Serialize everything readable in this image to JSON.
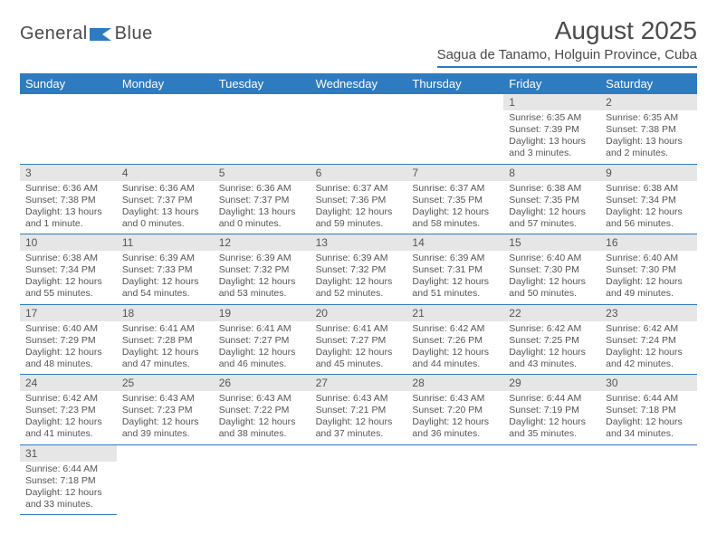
{
  "brand": {
    "name1": "General",
    "name2": "Blue"
  },
  "title": {
    "month": "August 2025",
    "location": "Sagua de Tanamo, Holguin Province, Cuba"
  },
  "colors": {
    "accent": "#2f7bbf",
    "daynum_bg": "#e6e6e6",
    "text": "#4a4a4a",
    "bg": "#ffffff"
  },
  "weekdays": [
    "Sunday",
    "Monday",
    "Tuesday",
    "Wednesday",
    "Thursday",
    "Friday",
    "Saturday"
  ],
  "layout": {
    "first_weekday_index": 5,
    "days_in_month": 31
  },
  "days": {
    "1": {
      "sunrise": "Sunrise: 6:35 AM",
      "sunset": "Sunset: 7:39 PM",
      "day1": "Daylight: 13 hours",
      "day2": "and 3 minutes."
    },
    "2": {
      "sunrise": "Sunrise: 6:35 AM",
      "sunset": "Sunset: 7:38 PM",
      "day1": "Daylight: 13 hours",
      "day2": "and 2 minutes."
    },
    "3": {
      "sunrise": "Sunrise: 6:36 AM",
      "sunset": "Sunset: 7:38 PM",
      "day1": "Daylight: 13 hours",
      "day2": "and 1 minute."
    },
    "4": {
      "sunrise": "Sunrise: 6:36 AM",
      "sunset": "Sunset: 7:37 PM",
      "day1": "Daylight: 13 hours",
      "day2": "and 0 minutes."
    },
    "5": {
      "sunrise": "Sunrise: 6:36 AM",
      "sunset": "Sunset: 7:37 PM",
      "day1": "Daylight: 13 hours",
      "day2": "and 0 minutes."
    },
    "6": {
      "sunrise": "Sunrise: 6:37 AM",
      "sunset": "Sunset: 7:36 PM",
      "day1": "Daylight: 12 hours",
      "day2": "and 59 minutes."
    },
    "7": {
      "sunrise": "Sunrise: 6:37 AM",
      "sunset": "Sunset: 7:35 PM",
      "day1": "Daylight: 12 hours",
      "day2": "and 58 minutes."
    },
    "8": {
      "sunrise": "Sunrise: 6:38 AM",
      "sunset": "Sunset: 7:35 PM",
      "day1": "Daylight: 12 hours",
      "day2": "and 57 minutes."
    },
    "9": {
      "sunrise": "Sunrise: 6:38 AM",
      "sunset": "Sunset: 7:34 PM",
      "day1": "Daylight: 12 hours",
      "day2": "and 56 minutes."
    },
    "10": {
      "sunrise": "Sunrise: 6:38 AM",
      "sunset": "Sunset: 7:34 PM",
      "day1": "Daylight: 12 hours",
      "day2": "and 55 minutes."
    },
    "11": {
      "sunrise": "Sunrise: 6:39 AM",
      "sunset": "Sunset: 7:33 PM",
      "day1": "Daylight: 12 hours",
      "day2": "and 54 minutes."
    },
    "12": {
      "sunrise": "Sunrise: 6:39 AM",
      "sunset": "Sunset: 7:32 PM",
      "day1": "Daylight: 12 hours",
      "day2": "and 53 minutes."
    },
    "13": {
      "sunrise": "Sunrise: 6:39 AM",
      "sunset": "Sunset: 7:32 PM",
      "day1": "Daylight: 12 hours",
      "day2": "and 52 minutes."
    },
    "14": {
      "sunrise": "Sunrise: 6:39 AM",
      "sunset": "Sunset: 7:31 PM",
      "day1": "Daylight: 12 hours",
      "day2": "and 51 minutes."
    },
    "15": {
      "sunrise": "Sunrise: 6:40 AM",
      "sunset": "Sunset: 7:30 PM",
      "day1": "Daylight: 12 hours",
      "day2": "and 50 minutes."
    },
    "16": {
      "sunrise": "Sunrise: 6:40 AM",
      "sunset": "Sunset: 7:30 PM",
      "day1": "Daylight: 12 hours",
      "day2": "and 49 minutes."
    },
    "17": {
      "sunrise": "Sunrise: 6:40 AM",
      "sunset": "Sunset: 7:29 PM",
      "day1": "Daylight: 12 hours",
      "day2": "and 48 minutes."
    },
    "18": {
      "sunrise": "Sunrise: 6:41 AM",
      "sunset": "Sunset: 7:28 PM",
      "day1": "Daylight: 12 hours",
      "day2": "and 47 minutes."
    },
    "19": {
      "sunrise": "Sunrise: 6:41 AM",
      "sunset": "Sunset: 7:27 PM",
      "day1": "Daylight: 12 hours",
      "day2": "and 46 minutes."
    },
    "20": {
      "sunrise": "Sunrise: 6:41 AM",
      "sunset": "Sunset: 7:27 PM",
      "day1": "Daylight: 12 hours",
      "day2": "and 45 minutes."
    },
    "21": {
      "sunrise": "Sunrise: 6:42 AM",
      "sunset": "Sunset: 7:26 PM",
      "day1": "Daylight: 12 hours",
      "day2": "and 44 minutes."
    },
    "22": {
      "sunrise": "Sunrise: 6:42 AM",
      "sunset": "Sunset: 7:25 PM",
      "day1": "Daylight: 12 hours",
      "day2": "and 43 minutes."
    },
    "23": {
      "sunrise": "Sunrise: 6:42 AM",
      "sunset": "Sunset: 7:24 PM",
      "day1": "Daylight: 12 hours",
      "day2": "and 42 minutes."
    },
    "24": {
      "sunrise": "Sunrise: 6:42 AM",
      "sunset": "Sunset: 7:23 PM",
      "day1": "Daylight: 12 hours",
      "day2": "and 41 minutes."
    },
    "25": {
      "sunrise": "Sunrise: 6:43 AM",
      "sunset": "Sunset: 7:23 PM",
      "day1": "Daylight: 12 hours",
      "day2": "and 39 minutes."
    },
    "26": {
      "sunrise": "Sunrise: 6:43 AM",
      "sunset": "Sunset: 7:22 PM",
      "day1": "Daylight: 12 hours",
      "day2": "and 38 minutes."
    },
    "27": {
      "sunrise": "Sunrise: 6:43 AM",
      "sunset": "Sunset: 7:21 PM",
      "day1": "Daylight: 12 hours",
      "day2": "and 37 minutes."
    },
    "28": {
      "sunrise": "Sunrise: 6:43 AM",
      "sunset": "Sunset: 7:20 PM",
      "day1": "Daylight: 12 hours",
      "day2": "and 36 minutes."
    },
    "29": {
      "sunrise": "Sunrise: 6:44 AM",
      "sunset": "Sunset: 7:19 PM",
      "day1": "Daylight: 12 hours",
      "day2": "and 35 minutes."
    },
    "30": {
      "sunrise": "Sunrise: 6:44 AM",
      "sunset": "Sunset: 7:18 PM",
      "day1": "Daylight: 12 hours",
      "day2": "and 34 minutes."
    },
    "31": {
      "sunrise": "Sunrise: 6:44 AM",
      "sunset": "Sunset: 7:18 PM",
      "day1": "Daylight: 12 hours",
      "day2": "and 33 minutes."
    }
  }
}
